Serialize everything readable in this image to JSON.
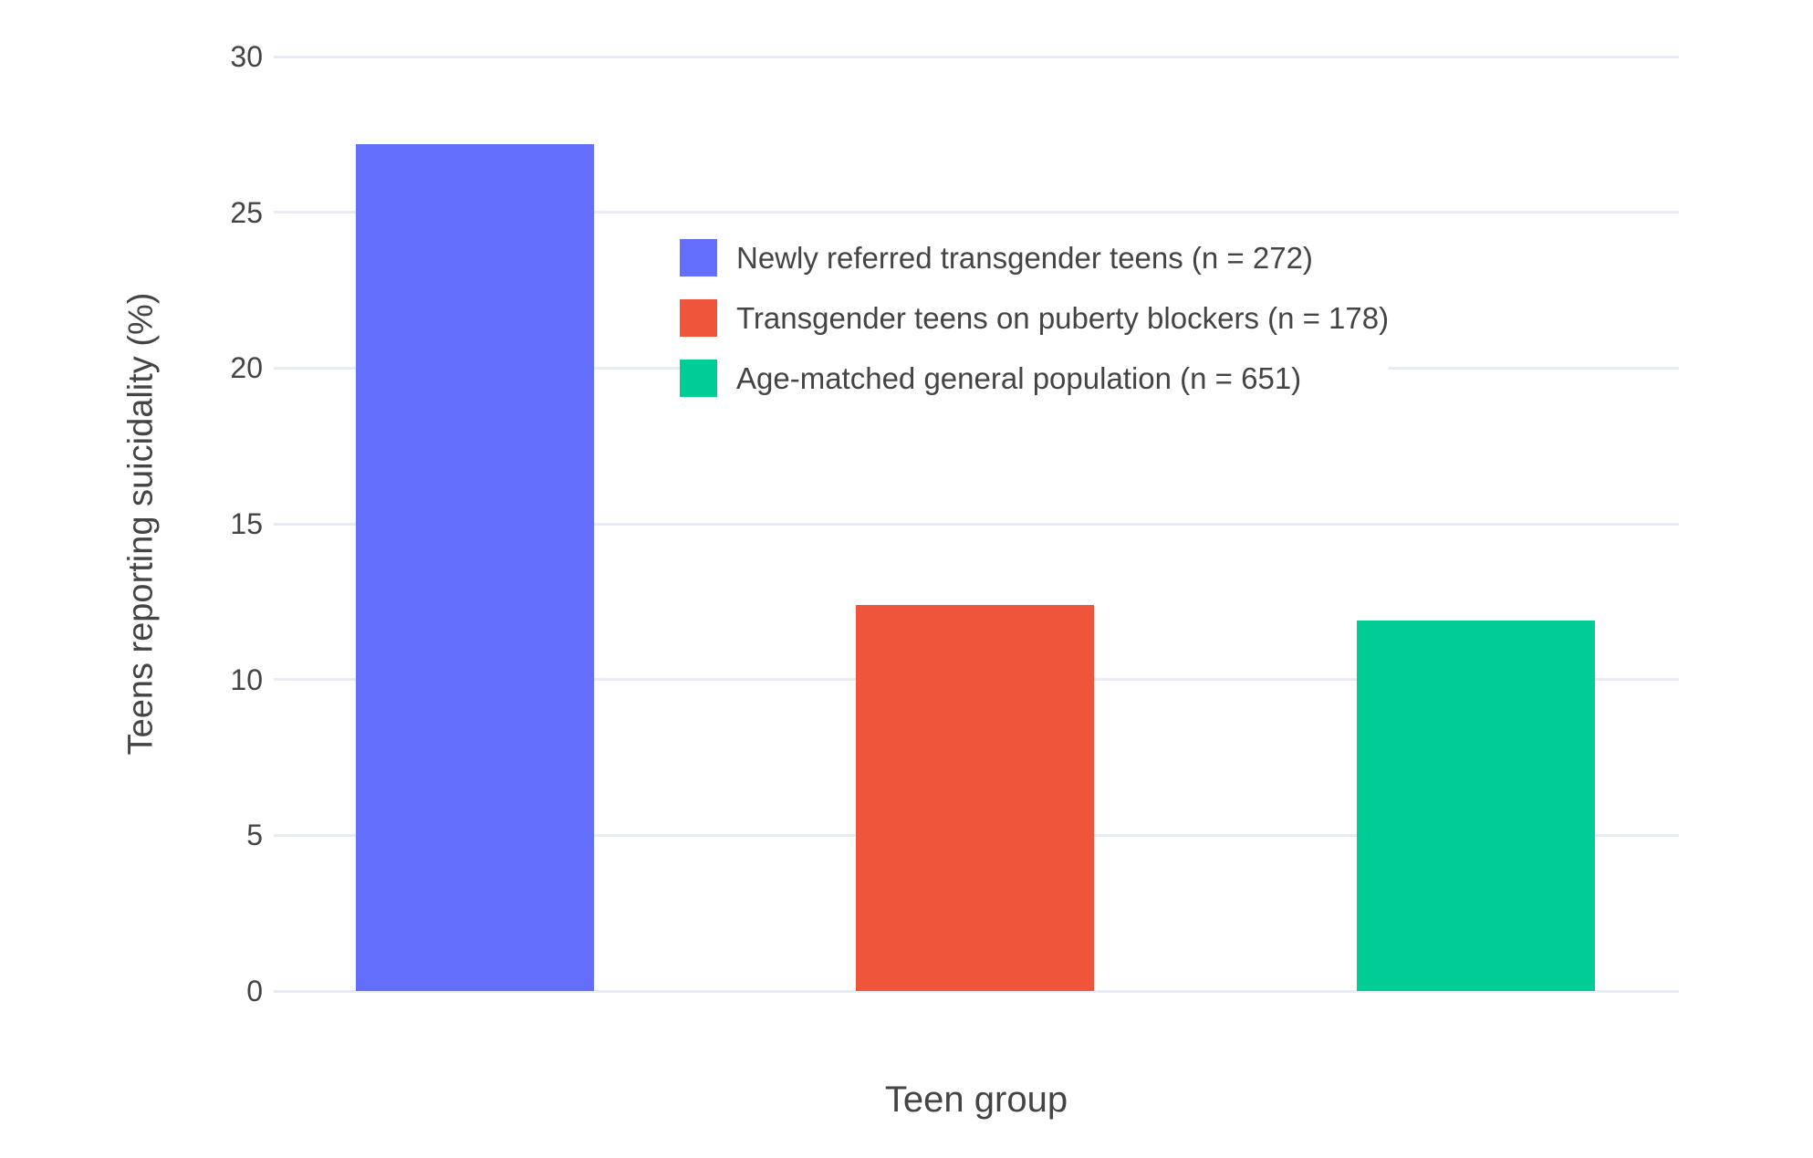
{
  "chart_data": {
    "type": "bar",
    "title": "",
    "xlabel": "Teen group",
    "ylabel": "Teens reporting suicidality (%)",
    "ylim": [
      0,
      30
    ],
    "yticks": [
      0,
      5,
      10,
      15,
      20,
      25,
      30
    ],
    "grid": true,
    "legend_position": "inside-top-center",
    "categories": [
      "Newly referred transgender teens (n = 272)",
      "Transgender teens on puberty blockers (n = 178)",
      "Age-matched general population (n = 651)"
    ],
    "series": [
      {
        "name": "Newly referred transgender teens (n = 272)",
        "value": 27.2,
        "color": "#636EFA"
      },
      {
        "name": "Transgender teens on puberty blockers (n = 178)",
        "value": 12.4,
        "color": "#EF553B"
      },
      {
        "name": "Age-matched general population (n = 651)",
        "value": 11.9,
        "color": "#00CC96"
      }
    ],
    "colors": {
      "grid": "#E5ECF6",
      "text": "#444444",
      "background": "#ffffff"
    }
  }
}
